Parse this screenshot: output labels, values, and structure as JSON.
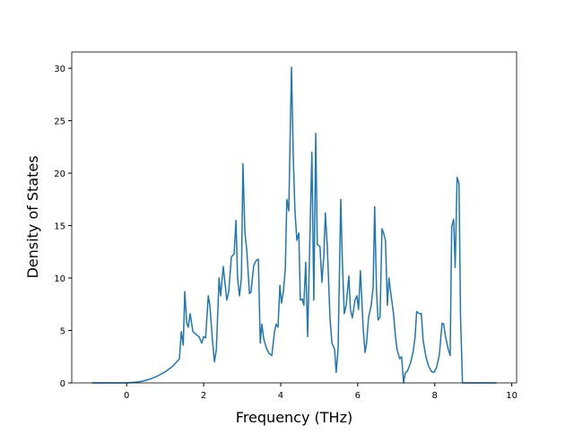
{
  "chart_data": {
    "type": "line",
    "xlabel": "Frequency (THz)",
    "ylabel": "Density of States",
    "x": [
      -0.9,
      -0.5,
      0,
      0.2,
      0.4,
      0.6,
      0.8,
      1.0,
      1.2,
      1.3,
      1.37,
      1.42,
      1.47,
      1.51,
      1.56,
      1.6,
      1.65,
      1.72,
      1.81,
      1.88,
      1.95,
      2.0,
      2.05,
      2.12,
      2.16,
      2.23,
      2.28,
      2.33,
      2.4,
      2.44,
      2.51,
      2.6,
      2.65,
      2.72,
      2.79,
      2.84,
      2.88,
      2.93,
      2.98,
      3.02,
      3.07,
      3.12,
      3.19,
      3.23,
      3.3,
      3.37,
      3.42,
      3.47,
      3.51,
      3.56,
      3.63,
      3.7,
      3.77,
      3.84,
      3.88,
      3.93,
      3.98,
      4.02,
      4.07,
      4.12,
      4.16,
      4.21,
      4.28,
      4.33,
      4.37,
      4.42,
      4.47,
      4.51,
      4.56,
      4.6,
      4.65,
      4.7,
      4.74,
      4.81,
      4.86,
      4.91,
      4.95,
      5.02,
      5.07,
      5.12,
      5.16,
      5.21,
      5.28,
      5.33,
      5.4,
      5.44,
      5.49,
      5.56,
      5.6,
      5.65,
      5.7,
      5.77,
      5.81,
      5.86,
      5.93,
      5.98,
      6.02,
      6.07,
      6.14,
      6.19,
      6.23,
      6.28,
      6.35,
      6.4,
      6.44,
      6.49,
      6.53,
      6.58,
      6.63,
      6.67,
      6.72,
      6.77,
      6.81,
      6.86,
      6.93,
      6.98,
      7.02,
      7.09,
      7.14,
      7.19,
      7.23,
      7.3,
      7.37,
      7.44,
      7.49,
      7.53,
      7.6,
      7.65,
      7.7,
      7.77,
      7.84,
      7.91,
      7.98,
      8.05,
      8.12,
      8.19,
      8.23,
      8.28,
      8.35,
      8.4,
      8.44,
      8.49,
      8.53,
      8.58,
      8.63,
      8.67,
      8.72,
      9.0,
      9.6
    ],
    "series": [
      {
        "color": "#1f77b4",
        "values": [
          0,
          0,
          0,
          0.05,
          0.15,
          0.35,
          0.65,
          1.05,
          1.6,
          2.0,
          2.3,
          4.9,
          3.6,
          8.7,
          5.7,
          5.3,
          6.6,
          4.9,
          4.6,
          4.4,
          3.8,
          4.4,
          4.3,
          8.3,
          7.4,
          4.0,
          2.0,
          3.2,
          10.0,
          8.3,
          11.1,
          7.9,
          8.7,
          12.0,
          12.3,
          15.5,
          10.0,
          8.3,
          10.0,
          20.9,
          14.4,
          12.6,
          8.5,
          8.7,
          11.2,
          11.7,
          11.8,
          3.8,
          5.6,
          4.2,
          3.3,
          2.8,
          2.6,
          4.9,
          5.6,
          5.3,
          9.3,
          7.6,
          8.7,
          10.9,
          17.5,
          16.4,
          30.1,
          21.1,
          16.4,
          13.6,
          14.3,
          7.9,
          8.0,
          7.4,
          11.5,
          4.4,
          10.9,
          22.0,
          7.9,
          23.8,
          13.2,
          13.0,
          9.6,
          12.1,
          16.2,
          13.0,
          6.2,
          3.8,
          3.2,
          1.0,
          3.2,
          17.5,
          11.7,
          6.6,
          7.4,
          10.2,
          7.0,
          6.2,
          7.9,
          8.3,
          7.0,
          10.7,
          5.3,
          2.9,
          3.8,
          6.2,
          7.4,
          9.1,
          16.8,
          8.5,
          6.0,
          6.3,
          14.7,
          14.3,
          13.6,
          7.4,
          10.0,
          8.5,
          6.6,
          4.4,
          3.2,
          2.3,
          2.5,
          0,
          0.9,
          1.2,
          1.9,
          3.0,
          4.4,
          6.8,
          6.6,
          6.6,
          4.0,
          2.5,
          1.6,
          1.1,
          1.0,
          1.5,
          2.7,
          5.7,
          5.6,
          4.4,
          3.2,
          2.6,
          14.9,
          15.6,
          11.0,
          19.6,
          19.0,
          6.2,
          0,
          0,
          0
        ]
      }
    ],
    "xlim": [
      -1.425,
      10.125
    ],
    "ylim": [
      0,
      31.55
    ],
    "xticks": [
      0,
      2,
      4,
      6,
      8,
      10
    ],
    "yticks": [
      0,
      5,
      10,
      15,
      20,
      25,
      30
    ]
  }
}
